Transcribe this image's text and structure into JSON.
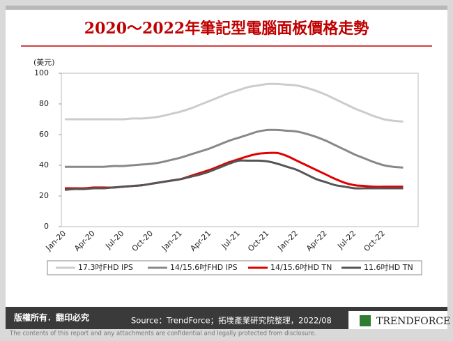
{
  "chart_data": {
    "type": "line",
    "title": "2020～2022年筆記型電腦面板價格走勢",
    "y_label": "(美元)",
    "categories": [
      "Jan-20",
      null,
      null,
      "Apr-20",
      null,
      null,
      "Jul-20",
      null,
      null,
      "Oct-20",
      null,
      null,
      "Jan-21",
      null,
      null,
      "Apr-21",
      null,
      null,
      "Jul-21",
      null,
      null,
      "Oct-21",
      null,
      null,
      "Jan-22",
      null,
      null,
      "Apr-22",
      null,
      null,
      "Jul-22",
      null,
      null,
      "Oct-22",
      null,
      null
    ],
    "series": [
      {
        "name": "17.3吋FHD IPS",
        "color": "#cccccc",
        "values": [
          70,
          70,
          70,
          70,
          70,
          70,
          70,
          70.5,
          70.5,
          71,
          72,
          73.5,
          75,
          77,
          79.5,
          82,
          84.5,
          87,
          89,
          91,
          92,
          93,
          93,
          92.5,
          92,
          90.5,
          88.5,
          86,
          83,
          80,
          77,
          74.5,
          72,
          70,
          69,
          68.5
        ]
      },
      {
        "name": "14/15.6吋FHD IPS",
        "color": "#888888",
        "values": [
          39,
          39,
          39,
          39,
          39,
          39.5,
          39.5,
          40,
          40.5,
          41,
          42,
          43.5,
          45,
          47,
          49,
          51,
          53.5,
          56,
          58,
          60,
          62,
          63,
          63,
          62.5,
          62,
          60.5,
          58.5,
          56,
          53,
          50,
          47,
          44.5,
          42,
          40,
          39,
          38.5
        ]
      },
      {
        "name": "14/15.6吋HD TN",
        "color": "#e00000",
        "values": [
          25,
          25,
          25,
          25.5,
          25.5,
          25.5,
          26,
          26.5,
          27,
          28,
          29,
          30,
          31,
          33,
          35,
          37,
          39.5,
          42,
          44,
          46,
          47.5,
          48,
          48,
          46,
          43,
          40,
          37,
          34,
          31,
          28.5,
          27,
          26.5,
          26,
          26,
          26,
          26
        ]
      },
      {
        "name": "11.6吋HD TN",
        "color": "#555555",
        "values": [
          24,
          24.5,
          24.5,
          25,
          25,
          25.5,
          26,
          26.5,
          27,
          28,
          29,
          30,
          31,
          32.5,
          34,
          36,
          38.5,
          41,
          43,
          43,
          43,
          42.5,
          41,
          39,
          37,
          34,
          31,
          29,
          27,
          26,
          25,
          25,
          25,
          25,
          25,
          25
        ]
      }
    ],
    "ylim": [
      0,
      100
    ],
    "yticks": [
      0,
      20,
      40,
      60,
      80,
      100
    ],
    "grid": false,
    "legend": "bottom"
  },
  "footer": {
    "copyright": "版權所有．翻印必究",
    "source": "Source：TrendForce；拓墣產業研究院整理，2022/08",
    "logo": "TRENDFORCE",
    "disclaimer": "The contents of this report and any attachments are confidential and legally protected from disclosure."
  }
}
